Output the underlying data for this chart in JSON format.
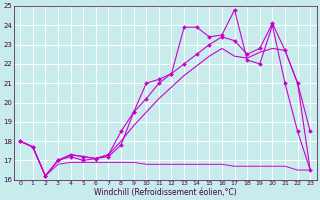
{
  "xlabel": "Windchill (Refroidissement éolien,°C)",
  "bg_color": "#c8ecec",
  "grid_color": "#ffffff",
  "line_color": "#cc00cc",
  "xlim": [
    -0.5,
    23.5
  ],
  "ylim": [
    16,
    25
  ],
  "yticks": [
    16,
    17,
    18,
    19,
    20,
    21,
    22,
    23,
    24,
    25
  ],
  "xticks": [
    0,
    1,
    2,
    3,
    4,
    5,
    6,
    7,
    8,
    9,
    10,
    11,
    12,
    13,
    14,
    15,
    16,
    17,
    18,
    19,
    20,
    21,
    22,
    23
  ],
  "s1_x": [
    0,
    1,
    2,
    3,
    4,
    5,
    6,
    7,
    8,
    9,
    10,
    11,
    12,
    13,
    14,
    15,
    16,
    17,
    18,
    19,
    20,
    21,
    22,
    23
  ],
  "s1_y": [
    18.0,
    17.7,
    16.2,
    17.0,
    17.2,
    17.0,
    17.1,
    17.2,
    17.8,
    19.5,
    21.0,
    21.2,
    21.5,
    23.9,
    23.9,
    23.4,
    23.5,
    24.8,
    22.2,
    22.0,
    24.0,
    21.0,
    18.5,
    16.5
  ],
  "s2_x": [
    0,
    1,
    2,
    3,
    4,
    5,
    6,
    7,
    8,
    9,
    10,
    11,
    12,
    13,
    14,
    15,
    16,
    17,
    18,
    19,
    20,
    21,
    22,
    23
  ],
  "s2_y": [
    18.0,
    17.7,
    16.2,
    17.0,
    17.3,
    17.2,
    17.1,
    17.3,
    18.5,
    19.5,
    20.2,
    21.0,
    21.5,
    22.0,
    22.5,
    23.0,
    23.4,
    23.2,
    22.5,
    22.8,
    24.1,
    22.7,
    21.0,
    18.5
  ],
  "s3_x": [
    0,
    1,
    2,
    3,
    4,
    5,
    6,
    7,
    8,
    9,
    10,
    11,
    12,
    13,
    14,
    15,
    16,
    17,
    18,
    19,
    20,
    21,
    22,
    23
  ],
  "s3_y": [
    18.0,
    17.7,
    16.2,
    17.0,
    17.3,
    17.2,
    17.1,
    17.3,
    18.0,
    18.8,
    19.5,
    20.2,
    20.8,
    21.4,
    21.9,
    22.4,
    22.8,
    22.4,
    22.3,
    22.6,
    22.8,
    22.7,
    21.0,
    16.5
  ],
  "s4_x": [
    0,
    1,
    2,
    3,
    4,
    5,
    6,
    7,
    8,
    9,
    10,
    11,
    12,
    13,
    14,
    15,
    16,
    17,
    18,
    19,
    20,
    21,
    22,
    23
  ],
  "s4_y": [
    18.0,
    17.7,
    16.2,
    16.8,
    16.9,
    16.9,
    16.9,
    16.9,
    16.9,
    16.9,
    16.8,
    16.8,
    16.8,
    16.8,
    16.8,
    16.8,
    16.8,
    16.7,
    16.7,
    16.7,
    16.7,
    16.7,
    16.5,
    16.5
  ]
}
